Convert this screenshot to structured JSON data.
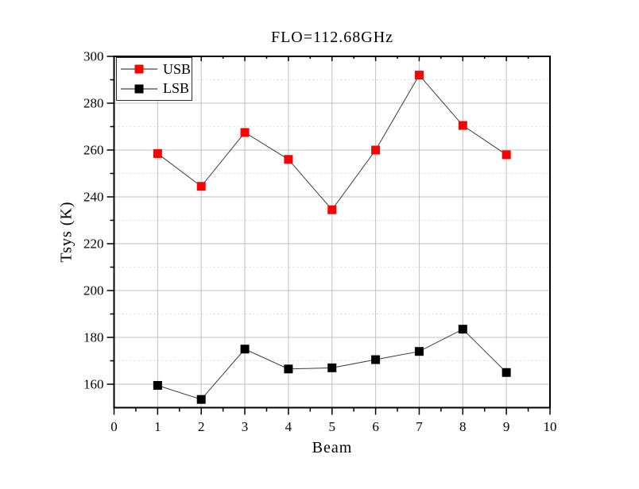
{
  "chart_data": {
    "type": "line",
    "title": "FLO=112.68GHz",
    "xlabel": "Beam",
    "ylabel": "Tsys (K)",
    "xlim": [
      0,
      10
    ],
    "ylim": [
      150,
      300
    ],
    "x": [
      1,
      2,
      3,
      4,
      5,
      6,
      7,
      8,
      9
    ],
    "series": [
      {
        "name": "USB",
        "color": "#ff0000",
        "values": [
          258.5,
          244.5,
          267.5,
          256,
          234.5,
          260,
          292,
          270.5,
          258
        ]
      },
      {
        "name": "LSB",
        "color": "#000000",
        "values": [
          159.5,
          153.5,
          175,
          166.5,
          167,
          170.5,
          174,
          183.5,
          165
        ]
      }
    ],
    "xticks": [
      0,
      1,
      2,
      3,
      4,
      5,
      6,
      7,
      8,
      9,
      10
    ],
    "xticks_minor": [
      0.5,
      1.5,
      2.5,
      3.5,
      4.5,
      5.5,
      6.5,
      7.5,
      8.5,
      9.5
    ],
    "yticks": [
      160,
      180,
      200,
      220,
      240,
      260,
      280,
      300
    ],
    "yticks_minor": [
      170,
      190,
      210,
      230,
      250,
      270,
      290
    ],
    "grid": true,
    "legend_position": "top-left",
    "colors": {
      "frame": "#000000",
      "series_line": "#3a3a3a",
      "grid_major": "#c0c0c0",
      "grid_minor": "#dcdcdc"
    }
  }
}
